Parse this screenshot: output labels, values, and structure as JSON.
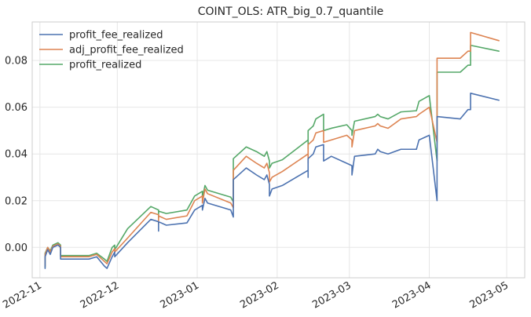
{
  "chart_data": {
    "type": "line",
    "title": "COINT_OLS: ATR_big_0.7_quantile",
    "xlabel": "",
    "ylabel": "",
    "x_axis_type": "date",
    "xlim": [
      "2022-10-29",
      "2023-05-08"
    ],
    "ylim": [
      -0.013,
      0.0965
    ],
    "grid": true,
    "legend_position": "top-left",
    "x_ticks": [
      {
        "date": "2022-11-01",
        "label": "2022-11"
      },
      {
        "date": "2022-12-01",
        "label": "2022-12"
      },
      {
        "date": "2023-01-01",
        "label": "2023-01"
      },
      {
        "date": "2023-02-01",
        "label": "2023-02"
      },
      {
        "date": "2023-03-01",
        "label": "2023-03"
      },
      {
        "date": "2023-04-01",
        "label": "2023-04"
      },
      {
        "date": "2023-05-01",
        "label": "2023-05"
      }
    ],
    "y_ticks": [
      {
        "value": 0.0,
        "label": "0.00"
      },
      {
        "value": 0.02,
        "label": "0.02"
      },
      {
        "value": 0.04,
        "label": "0.04"
      },
      {
        "value": 0.06,
        "label": "0.06"
      },
      {
        "value": 0.08,
        "label": "0.08"
      }
    ],
    "series": [
      {
        "name": "profit_fee_realized",
        "color": "#4c72b0",
        "points": [
          [
            "2022-11-03",
            -0.009
          ],
          [
            "2022-11-03",
            -0.004
          ],
          [
            "2022-11-04",
            -0.001
          ],
          [
            "2022-11-05",
            -0.003
          ],
          [
            "2022-11-06",
            0.0
          ],
          [
            "2022-11-08",
            0.001
          ],
          [
            "2022-11-09",
            0.0
          ],
          [
            "2022-11-09",
            -0.005
          ],
          [
            "2022-11-20",
            -0.005
          ],
          [
            "2022-11-23",
            -0.004
          ],
          [
            "2022-11-26",
            -0.008
          ],
          [
            "2022-11-27",
            -0.009
          ],
          [
            "2022-11-29",
            -0.004
          ],
          [
            "2022-11-30",
            -0.002
          ],
          [
            "2022-11-30",
            -0.004
          ],
          [
            "2022-12-05",
            0.002
          ],
          [
            "2022-12-14",
            0.012
          ],
          [
            "2022-12-17",
            0.011
          ],
          [
            "2022-12-17",
            0.007
          ],
          [
            "2022-12-17",
            0.011
          ],
          [
            "2022-12-20",
            0.0095
          ],
          [
            "2022-12-28",
            0.0105
          ],
          [
            "2022-12-31",
            0.016
          ],
          [
            "2023-01-03",
            0.018
          ],
          [
            "2023-01-03",
            0.016
          ],
          [
            "2023-01-04",
            0.021
          ],
          [
            "2023-01-05",
            0.019
          ],
          [
            "2023-01-14",
            0.016
          ],
          [
            "2023-01-15",
            0.013
          ],
          [
            "2023-01-15",
            0.029
          ],
          [
            "2023-01-20",
            0.034
          ],
          [
            "2023-01-24",
            0.031
          ],
          [
            "2023-01-27",
            0.029
          ],
          [
            "2023-01-28",
            0.031
          ],
          [
            "2023-01-29",
            0.027
          ],
          [
            "2023-01-29",
            0.022
          ],
          [
            "2023-01-30",
            0.025
          ],
          [
            "2023-02-03",
            0.0265
          ],
          [
            "2023-02-13",
            0.033
          ],
          [
            "2023-02-13",
            0.03
          ],
          [
            "2023-02-13",
            0.038
          ],
          [
            "2023-02-15",
            0.04
          ],
          [
            "2023-02-16",
            0.043
          ],
          [
            "2023-02-19",
            0.044
          ],
          [
            "2023-02-19",
            0.037
          ],
          [
            "2023-02-22",
            0.039
          ],
          [
            "2023-02-28",
            0.036
          ],
          [
            "2023-03-02",
            0.035
          ],
          [
            "2023-03-02",
            0.031
          ],
          [
            "2023-03-03",
            0.039
          ],
          [
            "2023-03-11",
            0.04
          ],
          [
            "2023-03-12",
            0.042
          ],
          [
            "2023-03-13",
            0.041
          ],
          [
            "2023-03-16",
            0.04
          ],
          [
            "2023-03-21",
            0.042
          ],
          [
            "2023-03-27",
            0.042
          ],
          [
            "2023-03-28",
            0.046
          ],
          [
            "2023-04-01",
            0.048
          ],
          [
            "2023-04-04",
            0.02
          ],
          [
            "2023-04-04",
            0.056
          ],
          [
            "2023-04-13",
            0.055
          ],
          [
            "2023-04-16",
            0.059
          ],
          [
            "2023-04-17",
            0.059
          ],
          [
            "2023-04-17",
            0.066
          ],
          [
            "2023-04-28",
            0.063
          ]
        ]
      },
      {
        "name": "adj_profit_fee_realized",
        "color": "#dd8452",
        "points": [
          [
            "2022-11-03",
            -0.008
          ],
          [
            "2022-11-03",
            -0.003
          ],
          [
            "2022-11-04",
            0.0
          ],
          [
            "2022-11-05",
            -0.002
          ],
          [
            "2022-11-06",
            0.0005
          ],
          [
            "2022-11-08",
            0.0015
          ],
          [
            "2022-11-09",
            0.0005
          ],
          [
            "2022-11-09",
            -0.004
          ],
          [
            "2022-11-20",
            -0.004
          ],
          [
            "2022-11-23",
            -0.003
          ],
          [
            "2022-11-26",
            -0.006
          ],
          [
            "2022-11-27",
            -0.007
          ],
          [
            "2022-11-29",
            -0.002
          ],
          [
            "2022-11-30",
            -0.0005
          ],
          [
            "2022-11-30",
            -0.002
          ],
          [
            "2022-12-05",
            0.004
          ],
          [
            "2022-12-14",
            0.015
          ],
          [
            "2022-12-17",
            0.014
          ],
          [
            "2022-12-17",
            0.01
          ],
          [
            "2022-12-17",
            0.0135
          ],
          [
            "2022-12-20",
            0.012
          ],
          [
            "2022-12-28",
            0.0135
          ],
          [
            "2022-12-31",
            0.02
          ],
          [
            "2023-01-03",
            0.022
          ],
          [
            "2023-01-03",
            0.019
          ],
          [
            "2023-01-04",
            0.025
          ],
          [
            "2023-01-05",
            0.023
          ],
          [
            "2023-01-14",
            0.019
          ],
          [
            "2023-01-15",
            0.017
          ],
          [
            "2023-01-15",
            0.033
          ],
          [
            "2023-01-20",
            0.039
          ],
          [
            "2023-01-24",
            0.036
          ],
          [
            "2023-01-27",
            0.034
          ],
          [
            "2023-01-28",
            0.036
          ],
          [
            "2023-01-29",
            0.032
          ],
          [
            "2023-01-29",
            0.028
          ],
          [
            "2023-01-30",
            0.03
          ],
          [
            "2023-02-03",
            0.0325
          ],
          [
            "2023-02-13",
            0.04
          ],
          [
            "2023-02-13",
            0.036
          ],
          [
            "2023-02-13",
            0.044
          ],
          [
            "2023-02-15",
            0.046
          ],
          [
            "2023-02-16",
            0.049
          ],
          [
            "2023-02-19",
            0.05
          ],
          [
            "2023-02-19",
            0.045
          ],
          [
            "2023-02-22",
            0.046
          ],
          [
            "2023-02-28",
            0.048
          ],
          [
            "2023-03-02",
            0.046
          ],
          [
            "2023-03-02",
            0.043
          ],
          [
            "2023-03-03",
            0.05
          ],
          [
            "2023-03-11",
            0.052
          ],
          [
            "2023-03-12",
            0.053
          ],
          [
            "2023-03-13",
            0.052
          ],
          [
            "2023-03-16",
            0.051
          ],
          [
            "2023-03-21",
            0.055
          ],
          [
            "2023-03-27",
            0.056
          ],
          [
            "2023-03-28",
            0.057
          ],
          [
            "2023-04-01",
            0.06
          ],
          [
            "2023-04-04",
            0.045
          ],
          [
            "2023-04-04",
            0.081
          ],
          [
            "2023-04-13",
            0.081
          ],
          [
            "2023-04-16",
            0.084
          ],
          [
            "2023-04-17",
            0.084
          ],
          [
            "2023-04-17",
            0.092
          ],
          [
            "2023-04-28",
            0.0885
          ]
        ]
      },
      {
        "name": "profit_realized",
        "color": "#55a868",
        "points": [
          [
            "2022-11-03",
            -0.0085
          ],
          [
            "2022-11-03",
            -0.0025
          ],
          [
            "2022-11-04",
            0.0
          ],
          [
            "2022-11-05",
            -0.0015
          ],
          [
            "2022-11-06",
            0.001
          ],
          [
            "2022-11-08",
            0.002
          ],
          [
            "2022-11-09",
            0.001
          ],
          [
            "2022-11-09",
            -0.0035
          ],
          [
            "2022-11-20",
            -0.0035
          ],
          [
            "2022-11-23",
            -0.0025
          ],
          [
            "2022-11-26",
            -0.005
          ],
          [
            "2022-11-27",
            -0.006
          ],
          [
            "2022-11-29",
            0.0
          ],
          [
            "2022-11-30",
            0.001
          ],
          [
            "2022-11-30",
            -0.001
          ],
          [
            "2022-12-05",
            0.008
          ],
          [
            "2022-12-14",
            0.0175
          ],
          [
            "2022-12-17",
            0.016
          ],
          [
            "2022-12-17",
            0.0125
          ],
          [
            "2022-12-17",
            0.0155
          ],
          [
            "2022-12-20",
            0.0145
          ],
          [
            "2022-12-28",
            0.016
          ],
          [
            "2022-12-31",
            0.022
          ],
          [
            "2023-01-03",
            0.024
          ],
          [
            "2023-01-03",
            0.021
          ],
          [
            "2023-01-04",
            0.0265
          ],
          [
            "2023-01-05",
            0.0245
          ],
          [
            "2023-01-14",
            0.0215
          ],
          [
            "2023-01-15",
            0.0195
          ],
          [
            "2023-01-15",
            0.038
          ],
          [
            "2023-01-20",
            0.043
          ],
          [
            "2023-01-24",
            0.041
          ],
          [
            "2023-01-27",
            0.039
          ],
          [
            "2023-01-28",
            0.041
          ],
          [
            "2023-01-29",
            0.037
          ],
          [
            "2023-01-29",
            0.034
          ],
          [
            "2023-01-30",
            0.036
          ],
          [
            "2023-02-03",
            0.0375
          ],
          [
            "2023-02-13",
            0.046
          ],
          [
            "2023-02-13",
            0.042
          ],
          [
            "2023-02-13",
            0.05
          ],
          [
            "2023-02-15",
            0.052
          ],
          [
            "2023-02-16",
            0.055
          ],
          [
            "2023-02-19",
            0.057
          ],
          [
            "2023-02-19",
            0.05
          ],
          [
            "2023-02-22",
            0.051
          ],
          [
            "2023-02-28",
            0.0525
          ],
          [
            "2023-03-02",
            0.05
          ],
          [
            "2023-03-02",
            0.048
          ],
          [
            "2023-03-03",
            0.054
          ],
          [
            "2023-03-11",
            0.056
          ],
          [
            "2023-03-12",
            0.057
          ],
          [
            "2023-03-13",
            0.056
          ],
          [
            "2023-03-16",
            0.055
          ],
          [
            "2023-03-21",
            0.058
          ],
          [
            "2023-03-27",
            0.0585
          ],
          [
            "2023-03-28",
            0.0625
          ],
          [
            "2023-04-01",
            0.065
          ],
          [
            "2023-04-04",
            0.037
          ],
          [
            "2023-04-04",
            0.075
          ],
          [
            "2023-04-13",
            0.075
          ],
          [
            "2023-04-16",
            0.078
          ],
          [
            "2023-04-17",
            0.078
          ],
          [
            "2023-04-17",
            0.0865
          ],
          [
            "2023-04-28",
            0.084
          ]
        ]
      }
    ]
  }
}
